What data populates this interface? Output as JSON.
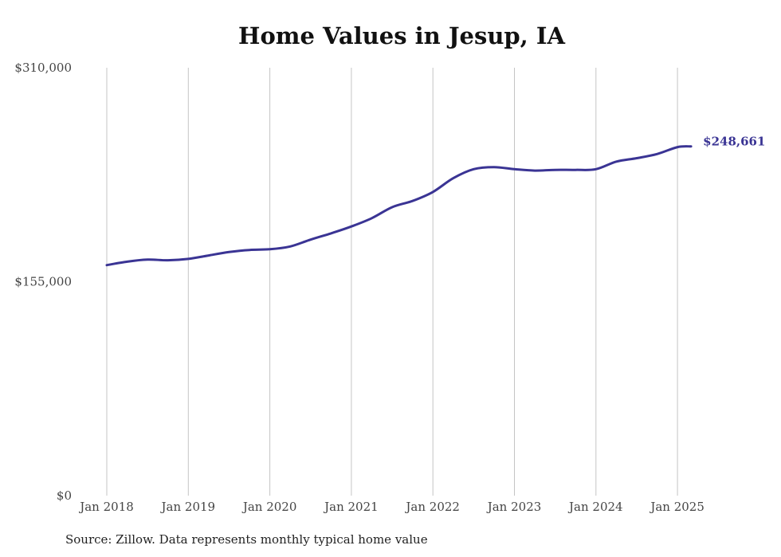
{
  "chart_data": {
    "type": "line",
    "title": "Home Values in Jesup, IA",
    "source": "Source: Zillow. Data represents monthly typical home value",
    "ylim": [
      0,
      310000
    ],
    "y_ticks": [
      {
        "value": 0,
        "label": "$0"
      },
      {
        "value": 155000,
        "label": "$155,000"
      },
      {
        "value": 310000,
        "label": "$310,000"
      }
    ],
    "x_ticks": [
      "Jan 2018",
      "Jan 2019",
      "Jan 2020",
      "Jan 2021",
      "Jan 2022",
      "Jan 2023",
      "Jan 2024",
      "Jan 2025"
    ],
    "grid": "vertical",
    "line_color": "#3a3494",
    "end_label": "$248,661",
    "series": [
      {
        "x": [
          "2018-01",
          "2018-04",
          "2018-07",
          "2018-10",
          "2019-01",
          "2019-04",
          "2019-07",
          "2019-10",
          "2020-01",
          "2020-04",
          "2020-07",
          "2020-10",
          "2021-01",
          "2021-04",
          "2021-07",
          "2021-10",
          "2022-01",
          "2022-04",
          "2022-07",
          "2022-10",
          "2023-01",
          "2023-04",
          "2023-07",
          "2023-10",
          "2024-01",
          "2024-04",
          "2024-07",
          "2024-10",
          "2025-01",
          "2025-03"
        ],
        "values": [
          167000,
          169500,
          171000,
          170500,
          171500,
          174000,
          176500,
          178000,
          178500,
          180500,
          185500,
          190000,
          195000,
          201000,
          209000,
          213500,
          220000,
          230000,
          236500,
          238000,
          236500,
          235500,
          236000,
          236000,
          236500,
          242000,
          244500,
          247500,
          252500,
          253000
        ]
      }
    ]
  }
}
